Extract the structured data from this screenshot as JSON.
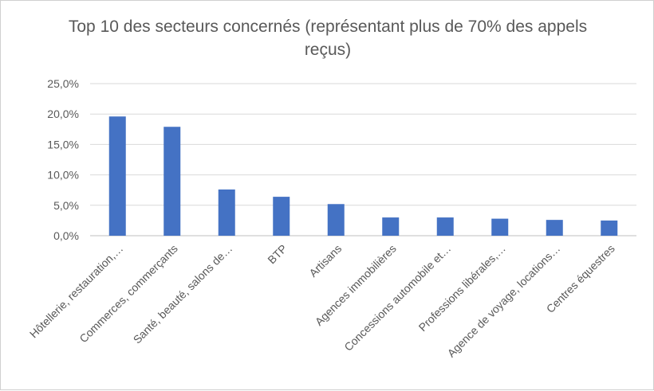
{
  "chart_data": {
    "type": "bar",
    "title": "Top 10 des secteurs concernés (représentant plus de 70% des appels reçus)",
    "xlabel": "",
    "ylabel": "",
    "categories": [
      "Hôtellerie, restauration,…",
      "Commerces, commerçants",
      "Santé, beauté, salons de…",
      "BTP",
      "Artisans",
      "Agences immobilières",
      "Concessions automobile et…",
      "Professions libérales,…",
      "Agence de voyage, locations…",
      "Centres équestres"
    ],
    "values": [
      19.6,
      17.9,
      7.6,
      6.4,
      5.2,
      3.0,
      3.0,
      2.8,
      2.6,
      2.5
    ],
    "ylim": [
      0,
      25
    ],
    "yticks": [
      "0,0%",
      "5,0%",
      "10,0%",
      "15,0%",
      "20,0%",
      "25,0%"
    ],
    "grid": true,
    "legend": "none",
    "bar_color": "#4472C4",
    "grid_color": "#d9d9d9"
  }
}
